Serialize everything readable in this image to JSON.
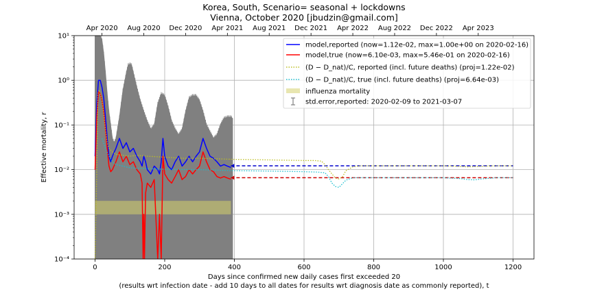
{
  "chart_data": {
    "type": "line",
    "title": "Korea, South, Scenario= seasonal + lockdowns",
    "subtitle": "Vienna, October 2020 [jbudzin@gmail.com]",
    "xlabel": "Days since confirmed new daily cases first exceeded 20",
    "xlabel2": "(results wrt infection date - add 10 days to all dates for results wrt diagnosis date as commonly reported), t",
    "ylabel": "Effective mortality, r",
    "x_scale": "linear",
    "y_scale": "log",
    "xlim": [
      -60,
      1260
    ],
    "ylim": [
      0.0001,
      10
    ],
    "x_ticks": [
      0,
      200,
      400,
      600,
      800,
      1000,
      1200
    ],
    "x_tick_labels": [
      "0",
      "200",
      "400",
      "600",
      "800",
      "1000",
      "1200"
    ],
    "y_ticks": [
      0.0001,
      0.001,
      0.01,
      0.1,
      1,
      10
    ],
    "y_tick_labels": [
      "10⁻⁴",
      "10⁻³",
      "10⁻²",
      "10⁻¹",
      "10⁰",
      "10¹"
    ],
    "top_axis": {
      "ticks": [
        20,
        140,
        260,
        380,
        500,
        620,
        740,
        860,
        980,
        1100
      ],
      "labels": [
        "Apr 2020",
        "Aug 2020",
        "Dec 2020",
        "Apr 2021",
        "Aug 2021",
        "Dec 2021",
        "Apr 2022",
        "Aug 2022",
        "Dec 2022",
        "Apr 2023"
      ]
    },
    "grid": true,
    "legend_position": "top-right",
    "legend": [
      {
        "label": "model,reported (now=1.12e-02, max=1.00e+00 on 2020-02-16)",
        "color": "#0000ff",
        "style": "solid"
      },
      {
        "label": "model,true (now=6.10e-03, max=5.46e-01 on 2020-02-16)",
        "color": "#ff0000",
        "style": "solid"
      },
      {
        "label": "(D − D_nat)/C, reported (incl. future deaths) (proj=1.22e-02)",
        "color": "#bcbd22",
        "style": "dotted"
      },
      {
        "label": "(D − D_nat)/C, true (incl. future deaths) (proj=6.64e-03)",
        "color": "#17becf",
        "style": "dotted"
      },
      {
        "label": "influenza mortality",
        "color": "#e8e6b0",
        "style": "patch"
      },
      {
        "label": "std.error,reported: 2020-02-09 to 2021-03-07",
        "color": "#808080",
        "style": "errorbar"
      }
    ],
    "influenza_band": [
      0.001,
      0.002
    ],
    "stderr_upper": {
      "x": [
        0,
        5,
        10,
        15,
        20,
        25,
        30,
        35,
        40,
        45,
        50,
        55,
        60,
        70,
        80,
        90,
        95,
        100,
        105,
        110,
        120,
        130,
        140,
        150,
        160,
        170,
        180,
        190,
        200,
        210,
        220,
        230,
        240,
        250,
        260,
        270,
        280,
        290,
        300,
        310,
        320,
        330,
        340,
        350,
        360,
        370,
        380,
        390,
        395
      ],
      "y": [
        10,
        10,
        10,
        10,
        8,
        4,
        1.5,
        0.5,
        0.2,
        0.1,
        0.05,
        0.04,
        0.05,
        0.15,
        0.6,
        1.5,
        2.2,
        2.3,
        2.2,
        1.5,
        0.7,
        0.35,
        0.2,
        0.12,
        0.08,
        0.1,
        0.3,
        0.5,
        0.45,
        0.25,
        0.12,
        0.08,
        0.06,
        0.08,
        0.2,
        0.4,
        0.45,
        0.45,
        0.35,
        0.2,
        0.1,
        0.07,
        0.05,
        0.06,
        0.1,
        0.14,
        0.15,
        0.15,
        0.14
      ]
    },
    "stderr_lower": [
      0.0001,
      0.0001
    ],
    "series": [
      {
        "name": "model,reported",
        "color": "#0000ff",
        "style": "solid",
        "x": [
          0,
          5,
          10,
          15,
          20,
          25,
          30,
          35,
          40,
          45,
          50,
          60,
          70,
          80,
          90,
          100,
          110,
          120,
          130,
          135,
          140,
          145,
          150,
          160,
          170,
          180,
          185,
          190,
          195,
          200,
          210,
          220,
          230,
          240,
          250,
          260,
          270,
          280,
          290,
          300,
          310,
          320,
          330,
          340,
          350,
          360,
          370,
          380,
          390
        ],
        "y": [
          0.02,
          0.3,
          1.0,
          1.0,
          0.7,
          0.4,
          0.15,
          0.05,
          0.02,
          0.015,
          0.02,
          0.03,
          0.05,
          0.03,
          0.04,
          0.025,
          0.03,
          0.02,
          0.015,
          0.012,
          0.02,
          0.015,
          0.01,
          0.008,
          0.012,
          0.01,
          0.008,
          0.015,
          0.05,
          0.02,
          0.012,
          0.01,
          0.015,
          0.02,
          0.012,
          0.015,
          0.02,
          0.015,
          0.02,
          0.025,
          0.05,
          0.03,
          0.02,
          0.018,
          0.015,
          0.012,
          0.013,
          0.012,
          0.0112
        ]
      },
      {
        "name": "model,reported projection",
        "color": "#0000cc",
        "style": "dashed",
        "x": [
          390,
          1200
        ],
        "y": [
          0.0122,
          0.0122
        ]
      },
      {
        "name": "model,true",
        "color": "#ff0000",
        "style": "solid",
        "x": [
          0,
          5,
          10,
          15,
          20,
          25,
          30,
          35,
          40,
          45,
          50,
          60,
          70,
          80,
          90,
          100,
          110,
          120,
          130,
          135,
          138,
          140,
          142,
          145,
          150,
          160,
          170,
          180,
          185,
          190,
          195,
          200,
          210,
          220,
          230,
          240,
          250,
          260,
          270,
          280,
          290,
          300,
          310,
          320,
          330,
          340,
          350,
          360,
          370,
          380,
          390
        ],
        "y": [
          0.01,
          0.15,
          0.55,
          0.5,
          0.35,
          0.2,
          0.08,
          0.03,
          0.012,
          0.009,
          0.01,
          0.015,
          0.025,
          0.015,
          0.02,
          0.013,
          0.015,
          0.01,
          0.008,
          0.005,
          0.0001,
          0.001,
          0.0001,
          0.003,
          0.005,
          0.004,
          0.006,
          0.0001,
          0.001,
          0.0001,
          0.02,
          0.008,
          0.006,
          0.005,
          0.007,
          0.01,
          0.006,
          0.007,
          0.01,
          0.008,
          0.01,
          0.012,
          0.025,
          0.015,
          0.01,
          0.009,
          0.007,
          0.0065,
          0.007,
          0.0065,
          0.0061
        ]
      },
      {
        "name": "model,true projection",
        "color": "#cc0000",
        "style": "dashed",
        "x": [
          390,
          1200
        ],
        "y": [
          0.0066,
          0.0066
        ]
      },
      {
        "name": "(D-Dnat)/C, reported",
        "color": "#bcbd22",
        "style": "dotted",
        "x": [
          0,
          5,
          8,
          12,
          15,
          20,
          25,
          30,
          35,
          40,
          50,
          60,
          80,
          100,
          120,
          150,
          200,
          250,
          300,
          350,
          400,
          450,
          500,
          550,
          600,
          630,
          650,
          660,
          670,
          680,
          690,
          700,
          710,
          720,
          740,
          760,
          800,
          850,
          900,
          950,
          1000,
          1050,
          1070,
          1100,
          1150,
          1200
        ],
        "y": [
          0.0001,
          0.01,
          0.5,
          0.6,
          0.5,
          0.35,
          0.18,
          0.08,
          0.04,
          0.03,
          0.025,
          0.022,
          0.021,
          0.02,
          0.021,
          0.02,
          0.019,
          0.018,
          0.018,
          0.0175,
          0.017,
          0.0168,
          0.0165,
          0.0163,
          0.016,
          0.016,
          0.0155,
          0.013,
          0.01,
          0.008,
          0.0065,
          0.0062,
          0.0068,
          0.0095,
          0.0115,
          0.0122,
          0.0122,
          0.0122,
          0.0122,
          0.0122,
          0.0122,
          0.0118,
          0.0115,
          0.0118,
          0.0122,
          0.0122
        ]
      },
      {
        "name": "(D-Dnat)/C, true",
        "color": "#17becf",
        "style": "dotted",
        "x": [
          20,
          30,
          40,
          50,
          60,
          80,
          100,
          150,
          200,
          300,
          400,
          500,
          600,
          640,
          660,
          670,
          680,
          690,
          700,
          710,
          720,
          740,
          760,
          800,
          900,
          1000,
          1050,
          1070,
          1090,
          1110,
          1150,
          1200
        ],
        "y": [
          0.05,
          0.03,
          0.02,
          0.015,
          0.013,
          0.012,
          0.011,
          0.0105,
          0.0102,
          0.01,
          0.0095,
          0.0093,
          0.009,
          0.0088,
          0.0085,
          0.007,
          0.005,
          0.0042,
          0.004,
          0.0048,
          0.0058,
          0.0066,
          0.0066,
          0.0066,
          0.0066,
          0.0066,
          0.0063,
          0.006,
          0.0059,
          0.0062,
          0.0066,
          0.0066
        ]
      }
    ]
  }
}
